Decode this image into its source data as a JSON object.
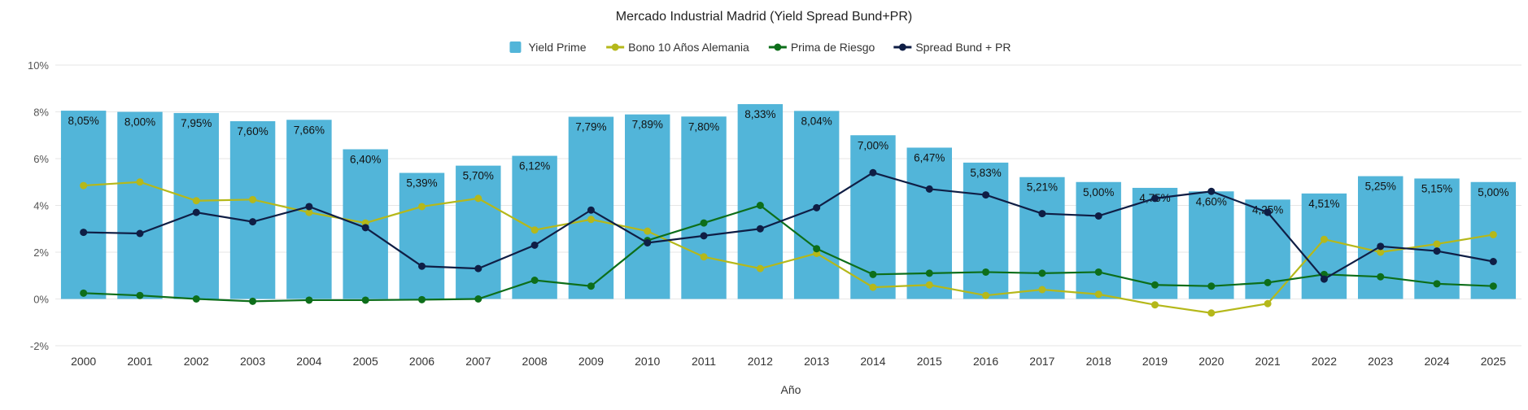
{
  "chart_data": {
    "type": "bar",
    "title": "Mercado Industrial Madrid (Yield Spread Bund+PR)",
    "xlabel": "Año",
    "ylabel": "",
    "ylim": [
      -2,
      10
    ],
    "yticks": [
      -2,
      0,
      2,
      4,
      6,
      8,
      10
    ],
    "ytick_labels": [
      "-2%",
      "0%",
      "2%",
      "4%",
      "6%",
      "8%",
      "10%"
    ],
    "grid": true,
    "legend_position": "top-center",
    "categories": [
      "2000",
      "2001",
      "2002",
      "2003",
      "2004",
      "2005",
      "2006",
      "2007",
      "2008",
      "2009",
      "2010",
      "2011",
      "2012",
      "2013",
      "2014",
      "2015",
      "2016",
      "2017",
      "2018",
      "2019",
      "2020",
      "2021",
      "2022",
      "2023",
      "2024",
      "2025"
    ],
    "series": [
      {
        "name": "Yield Prime",
        "type": "bar",
        "color": "#52b5d9",
        "values": [
          8.05,
          8.0,
          7.95,
          7.6,
          7.66,
          6.4,
          5.39,
          5.7,
          6.12,
          7.79,
          7.89,
          7.8,
          8.33,
          8.04,
          7.0,
          6.47,
          5.83,
          5.21,
          5.0,
          4.75,
          4.6,
          4.25,
          4.51,
          5.25,
          5.15,
          5.0
        ],
        "labels": [
          "8,05%",
          "8,00%",
          "7,95%",
          "7,60%",
          "7,66%",
          "6,40%",
          "5,39%",
          "5,70%",
          "6,12%",
          "7,79%",
          "7,89%",
          "7,80%",
          "8,33%",
          "8,04%",
          "7,00%",
          "6,47%",
          "5,83%",
          "5,21%",
          "5,00%",
          "4,75%",
          "4,60%",
          "4,25%",
          "4,51%",
          "5,25%",
          "5,15%",
          "5,00%"
        ]
      },
      {
        "name": "Bono 10 Años Alemania",
        "type": "line",
        "color": "#b5b81a",
        "values": [
          4.85,
          5.0,
          4.2,
          4.25,
          3.7,
          3.25,
          3.95,
          4.3,
          2.95,
          3.4,
          2.9,
          1.8,
          1.3,
          1.95,
          0.5,
          0.6,
          0.15,
          0.4,
          0.2,
          -0.25,
          -0.6,
          -0.2,
          2.55,
          2.0,
          2.35,
          2.75
        ]
      },
      {
        "name": "Prima de Riesgo",
        "type": "line",
        "color": "#0d6e1a",
        "values": [
          0.25,
          0.15,
          0.0,
          -0.1,
          -0.05,
          -0.05,
          -0.03,
          0.0,
          0.8,
          0.55,
          2.5,
          3.25,
          4.0,
          2.15,
          1.05,
          1.1,
          1.15,
          1.1,
          1.15,
          0.6,
          0.55,
          0.7,
          1.05,
          0.95,
          0.65,
          0.55
        ]
      },
      {
        "name": "Spread Bund + PR",
        "type": "line",
        "color": "#0f1e45",
        "values": [
          2.85,
          2.8,
          3.7,
          3.3,
          3.95,
          3.05,
          1.4,
          1.3,
          2.3,
          3.8,
          2.4,
          2.7,
          3.0,
          3.9,
          5.4,
          4.7,
          4.45,
          3.65,
          3.55,
          4.3,
          4.6,
          3.7,
          0.85,
          2.25,
          2.05,
          1.6
        ]
      }
    ]
  }
}
